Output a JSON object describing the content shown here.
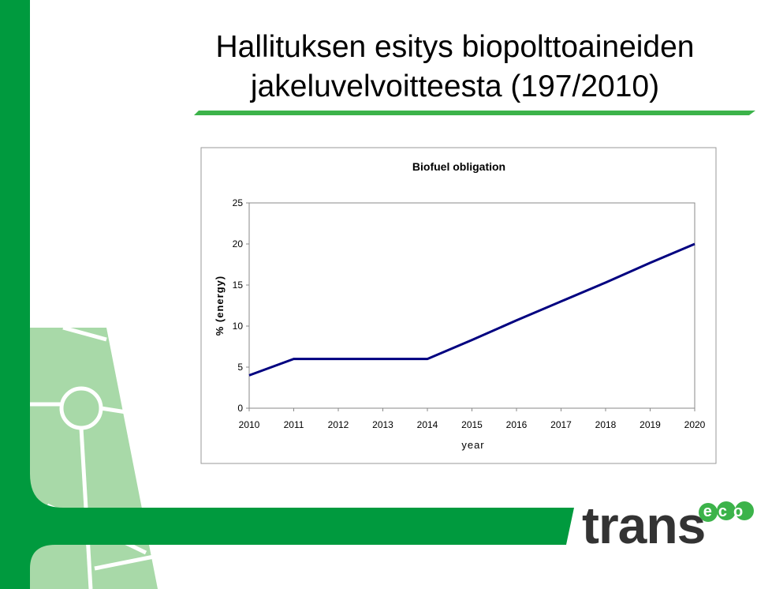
{
  "header": {
    "title_lines": [
      "Hallituksen esitys biopolttoaineiden",
      "jakeluvelvoitteesta (197/2010)"
    ]
  },
  "logo": {
    "text": "trans",
    "badge": "eco"
  },
  "chart_data": {
    "type": "line",
    "title": "Biofuel obligation",
    "x_label": "year",
    "y_label": "% (energy)",
    "x": [
      2010,
      2011,
      2012,
      2013,
      2014,
      2015,
      2016,
      2017,
      2018,
      2019,
      2020
    ],
    "series": [
      {
        "color": "#000080",
        "values": [
          4,
          6,
          6,
          6,
          6,
          8.3,
          10.7,
          13,
          15.3,
          17.7,
          20
        ]
      }
    ],
    "xlim": [
      2010,
      2020
    ],
    "xticks": [
      2010,
      2011,
      2012,
      2013,
      2014,
      2015,
      2016,
      2017,
      2018,
      2019,
      2020
    ],
    "ylim": [
      0,
      25
    ],
    "yticks": [
      0,
      5,
      10,
      15,
      20,
      25
    ],
    "grid": false
  }
}
